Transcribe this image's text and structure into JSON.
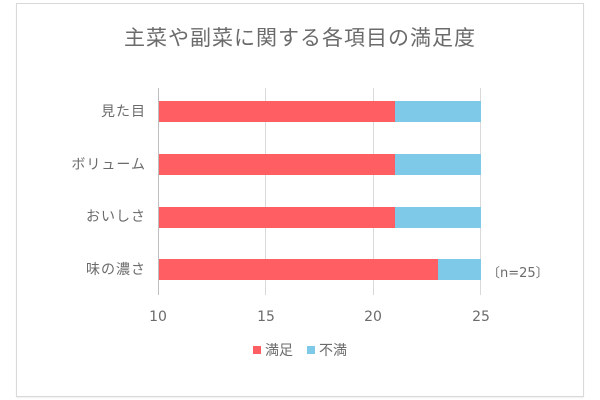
{
  "chart_data": {
    "type": "bar",
    "orientation": "horizontal",
    "stacked": true,
    "title": "主菜や副菜に関する各項目の満足度",
    "categories": [
      "見た目",
      "ボリューム",
      "おいしさ",
      "味の濃さ"
    ],
    "series": [
      {
        "name": "満足",
        "color": "#ff5f63",
        "values": [
          21,
          21,
          21,
          23
        ]
      },
      {
        "name": "不満",
        "color": "#7ec8e8",
        "values": [
          4,
          4,
          4,
          2
        ]
      }
    ],
    "xlabel": "",
    "ylabel": "",
    "xlim": [
      10,
      25
    ],
    "x_ticks": [
      "10",
      "15",
      "20",
      "25"
    ],
    "grid": "vertical",
    "legend_position": "bottom",
    "annotation": "〔n=25〕"
  },
  "labels": {
    "title": "主菜や副菜に関する各項目の満足度",
    "categories": [
      "見た目",
      "ボリューム",
      "おいしさ",
      "味の濃さ"
    ],
    "ticks": [
      "10",
      "15",
      "20",
      "25"
    ],
    "legend_sat": "満足",
    "legend_dis": "不満",
    "annotation": "〔n=25〕"
  }
}
